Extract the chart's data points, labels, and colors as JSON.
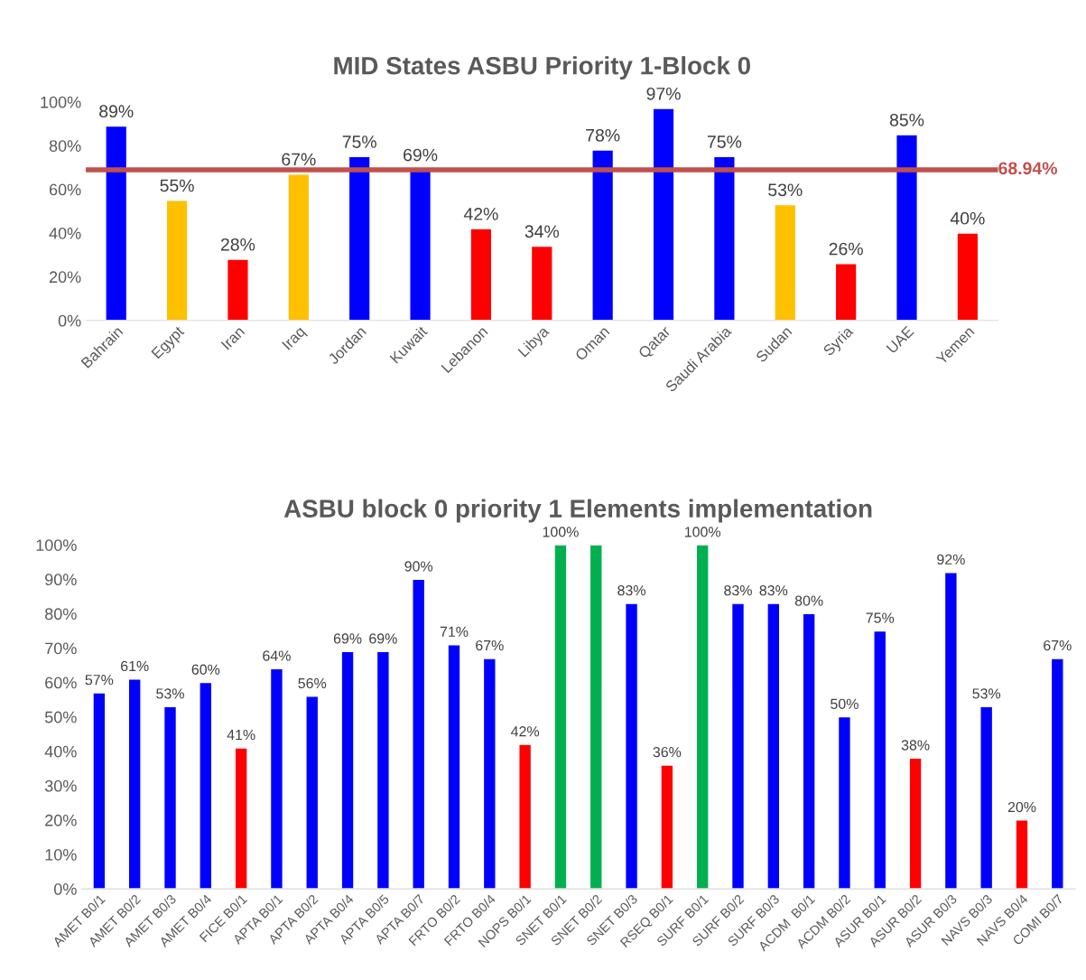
{
  "chart_data": [
    {
      "type": "bar",
      "title": "MID States ASBU Priority 1-Block 0",
      "categories": [
        "Bahrain",
        "Egypt",
        "Iran",
        "Iraq",
        "Jordan",
        "Kuwait",
        "Lebanon",
        "Libya",
        "Oman",
        "Qatar",
        "Saudi Arabia",
        "Sudan",
        "Syria",
        "UAE",
        "Yemen"
      ],
      "values": [
        89,
        55,
        28,
        67,
        75,
        69,
        42,
        34,
        78,
        97,
        75,
        53,
        26,
        85,
        40
      ],
      "colors": [
        "#0000ff",
        "#ffc000",
        "#ff0000",
        "#ffc000",
        "#0000ff",
        "#0000ff",
        "#ff0000",
        "#ff0000",
        "#0000ff",
        "#0000ff",
        "#0000ff",
        "#ffc000",
        "#ff0000",
        "#0000ff",
        "#ff0000"
      ],
      "value_labels": [
        "89%",
        "55%",
        "28%",
        "67%",
        "75%",
        "69%",
        "42%",
        "34%",
        "78%",
        "97%",
        "75%",
        "53%",
        "26%",
        "85%",
        "40%"
      ],
      "ylim": [
        0,
        100
      ],
      "yticks": [
        {
          "value": 0,
          "label": "0%"
        },
        {
          "value": 20,
          "label": "20%"
        },
        {
          "value": 40,
          "label": "40%"
        },
        {
          "value": 60,
          "label": "60%"
        },
        {
          "value": 80,
          "label": "80%"
        },
        {
          "value": 100,
          "label": "100%"
        }
      ],
      "ref_lines": [
        {
          "axis": "y",
          "value": 68.94,
          "label": "68.94%",
          "color": "#c0504d"
        }
      ],
      "grid": false,
      "legend": false
    },
    {
      "type": "bar",
      "title": "ASBU block 0 priority 1 Elements implementation",
      "categories": [
        "AMET B0/1",
        "AMET B0/2",
        "AMET B0/3",
        "AMET B0/4",
        "FICE B0/1",
        "APTA B0/1",
        "APTA B0/2",
        "APTA B0/4",
        "APTA B0/5",
        "APTA B0/7",
        "FRTO B0/2",
        "FRTO B0/4",
        "NOPS B0/1",
        "SNET B0/1",
        "SNET B0/2",
        "SNET B0/3",
        "RSEQ B0/1",
        "SURF B0/1",
        "SURF B0/2",
        "SURF B0/3",
        "ACDM  B0/1",
        "ACDM B0/2",
        "ASUR B0/1",
        "ASUR B0/2",
        "ASUR B0/3",
        "NAVS B0/3",
        "NAVS B0/4",
        "COMI B0/7"
      ],
      "values": [
        57,
        61,
        53,
        60,
        41,
        64,
        56,
        69,
        69,
        90,
        71,
        67,
        42,
        100,
        100,
        83,
        36,
        100,
        83,
        83,
        80,
        50,
        75,
        38,
        92,
        53,
        20,
        67
      ],
      "colors": [
        "#0000ff",
        "#0000ff",
        "#0000ff",
        "#0000ff",
        "#ff0000",
        "#0000ff",
        "#0000ff",
        "#0000ff",
        "#0000ff",
        "#0000ff",
        "#0000ff",
        "#0000ff",
        "#ff0000",
        "#00b050",
        "#00b050",
        "#0000ff",
        "#ff0000",
        "#00b050",
        "#0000ff",
        "#0000ff",
        "#0000ff",
        "#0000ff",
        "#0000ff",
        "#ff0000",
        "#0000ff",
        "#0000ff",
        "#ff0000",
        "#0000ff"
      ],
      "value_labels": [
        "57%",
        "61%",
        "53%",
        "60%",
        "41%",
        "64%",
        "56%",
        "69%",
        "69%",
        "90%",
        "71%",
        "67%",
        "42%",
        "100%",
        null,
        "83%",
        "36%",
        "100%",
        "83%",
        "83%",
        "80%",
        "50%",
        "75%",
        "38%",
        "92%",
        "53%",
        "20%",
        "67%"
      ],
      "ylim": [
        0,
        100
      ],
      "yticks": [
        {
          "value": 0,
          "label": "0%"
        },
        {
          "value": 10,
          "label": "10%"
        },
        {
          "value": 20,
          "label": "20%"
        },
        {
          "value": 30,
          "label": "30%"
        },
        {
          "value": 40,
          "label": "40%"
        },
        {
          "value": 50,
          "label": "50%"
        },
        {
          "value": 60,
          "label": "60%"
        },
        {
          "value": 70,
          "label": "70%"
        },
        {
          "value": 80,
          "label": "80%"
        },
        {
          "value": 90,
          "label": "90%"
        },
        {
          "value": 100,
          "label": "100%"
        }
      ],
      "grid": false,
      "legend": false
    }
  ]
}
